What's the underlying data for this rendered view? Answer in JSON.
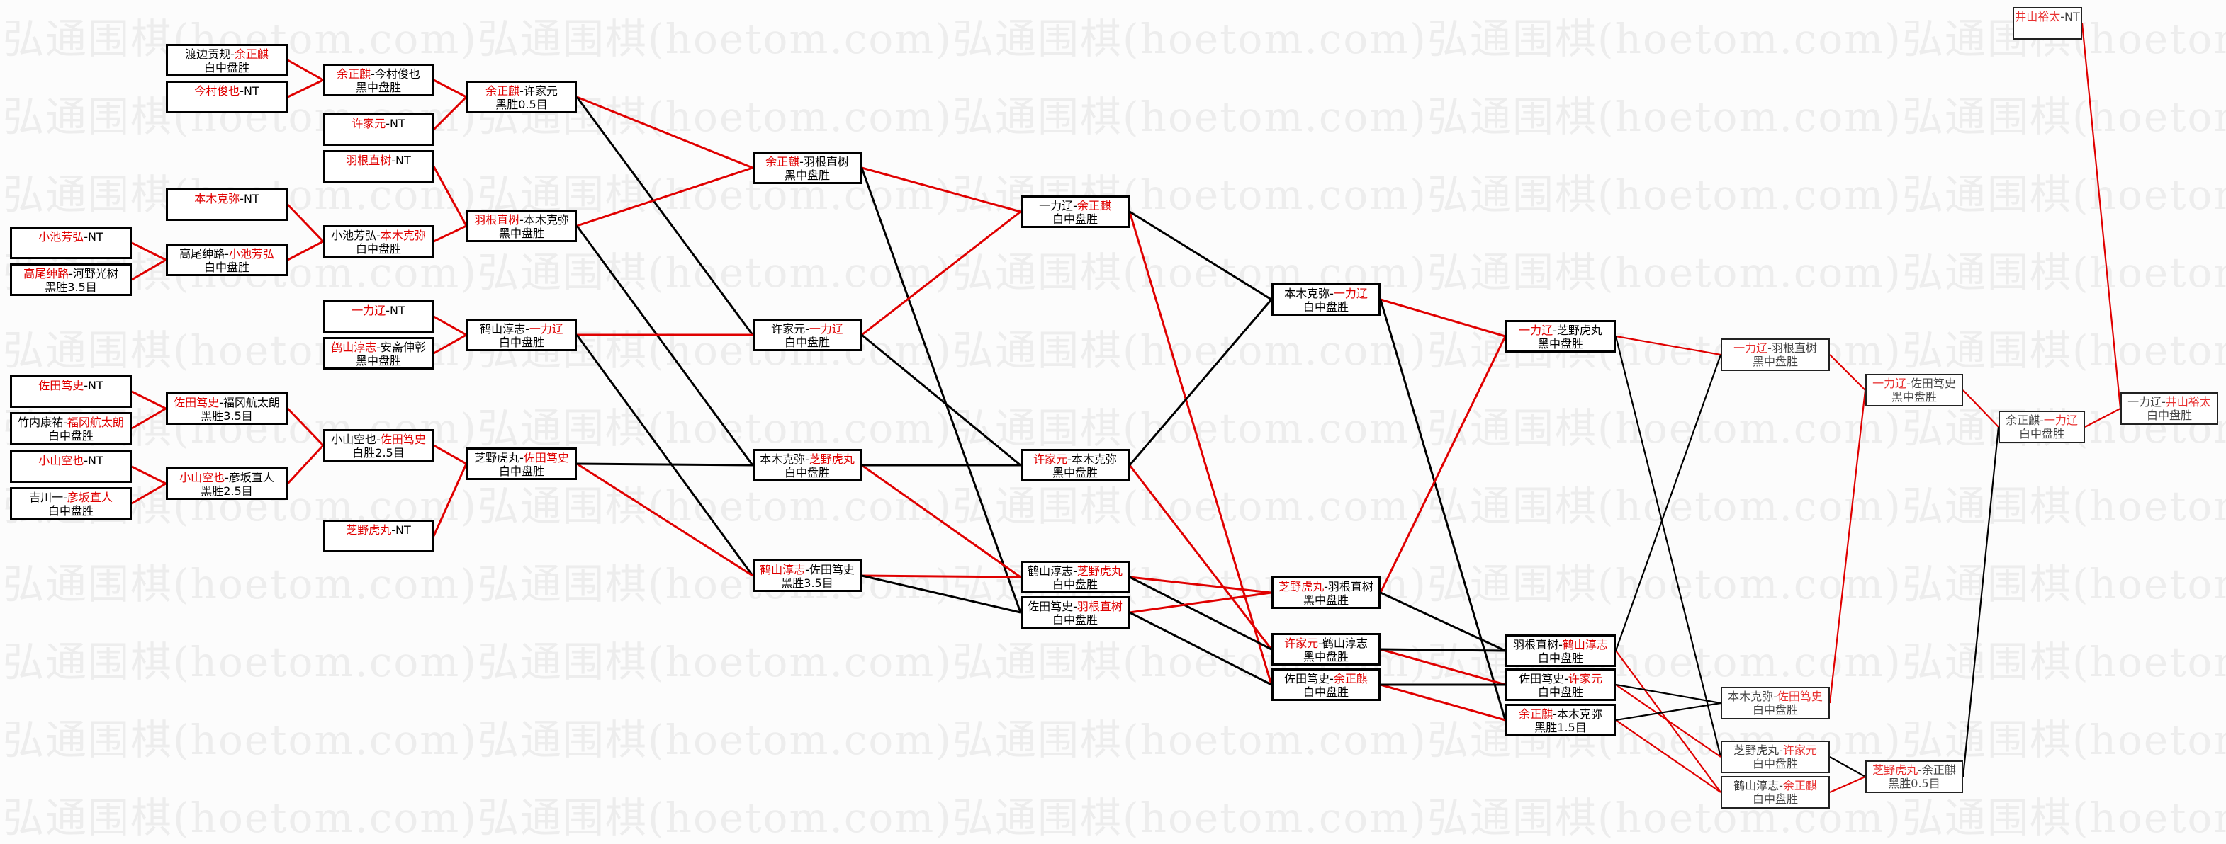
{
  "watermark": "弘通围棋(hoetom.com)",
  "colors": {
    "win_line": "#e00000",
    "lose_line": "#000000",
    "winner_name": "#e00000"
  },
  "separator": "-",
  "games": {
    "A1": {
      "a": "小池芳弘",
      "b": "NT",
      "win": "a",
      "result": ""
    },
    "A2": {
      "a": "高尾绅路",
      "b": "河野光树",
      "win": "a",
      "result": "黑胜3.5目"
    },
    "A3": {
      "a": "佐田笃史",
      "b": "NT",
      "win": "a",
      "result": ""
    },
    "A4": {
      "a": "竹内康祐",
      "b": "福冈航太朗",
      "win": "b",
      "result": "白中盘胜"
    },
    "A5": {
      "a": "小山空也",
      "b": "NT",
      "win": "a",
      "result": ""
    },
    "A6": {
      "a": "吉川一",
      "b": "彦坂直人",
      "win": "b",
      "result": "白中盘胜"
    },
    "B1": {
      "a": "渡边贡规",
      "b": "余正麒",
      "win": "b",
      "result": "白中盘胜"
    },
    "B2": {
      "a": "今村俊也",
      "b": "NT",
      "win": "a",
      "result": ""
    },
    "B3": {
      "a": "本木克弥",
      "b": "NT",
      "win": "a",
      "result": ""
    },
    "B4": {
      "a": "高尾绅路",
      "b": "小池芳弘",
      "win": "b",
      "result": "白中盘胜"
    },
    "B5": {
      "a": "佐田笃史",
      "b": "福冈航太朗",
      "win": "a",
      "result": "黑胜3.5目"
    },
    "B6": {
      "a": "小山空也",
      "b": "彦坂直人",
      "win": "a",
      "result": "黑胜2.5目"
    },
    "C1": {
      "a": "余正麒",
      "b": "今村俊也",
      "win": "a",
      "result": "黑中盘胜"
    },
    "C2": {
      "a": "许家元",
      "b": "NT",
      "win": "a",
      "result": ""
    },
    "C3": {
      "a": "羽根直树",
      "b": "NT",
      "win": "a",
      "result": ""
    },
    "C4": {
      "a": "小池芳弘",
      "b": "本木克弥",
      "win": "b",
      "result": "白中盘胜"
    },
    "C5": {
      "a": "一力辽",
      "b": "NT",
      "win": "a",
      "result": ""
    },
    "C6": {
      "a": "鹤山淳志",
      "b": "安斋伸彰",
      "win": "a",
      "result": "黑中盘胜"
    },
    "C7": {
      "a": "小山空也",
      "b": "佐田笃史",
      "win": "b",
      "result": "白胜2.5目"
    },
    "C8": {
      "a": "芝野虎丸",
      "b": "NT",
      "win": "a",
      "result": ""
    },
    "D1": {
      "a": "余正麒",
      "b": "许家元",
      "win": "a",
      "result": "黑胜0.5目"
    },
    "D2": {
      "a": "羽根直树",
      "b": "本木克弥",
      "win": "a",
      "result": "黑中盘胜"
    },
    "D3": {
      "a": "鹤山淳志",
      "b": "一力辽",
      "win": "b",
      "result": "白中盘胜"
    },
    "D4": {
      "a": "芝野虎丸",
      "b": "佐田笃史",
      "win": "b",
      "result": "白中盘胜"
    },
    "E1": {
      "a": "余正麒",
      "b": "羽根直树",
      "win": "a",
      "result": "黑中盘胜"
    },
    "E2": {
      "a": "许家元",
      "b": "一力辽",
      "win": "b",
      "result": "白中盘胜"
    },
    "E3": {
      "a": "本木克弥",
      "b": "芝野虎丸",
      "win": "b",
      "result": "白中盘胜"
    },
    "E4": {
      "a": "鹤山淳志",
      "b": "佐田笃史",
      "win": "a",
      "result": "黑胜3.5目"
    },
    "F1": {
      "a": "一力辽",
      "b": "余正麒",
      "win": "b",
      "result": "白中盘胜"
    },
    "F2": {
      "a": "许家元",
      "b": "本木克弥",
      "win": "a",
      "result": "黑中盘胜"
    },
    "F3": {
      "a": "鹤山淳志",
      "b": "芝野虎丸",
      "win": "b",
      "result": "白中盘胜"
    },
    "F4": {
      "a": "佐田笃史",
      "b": "羽根直树",
      "win": "b",
      "result": "白中盘胜"
    },
    "G1": {
      "a": "本木克弥",
      "b": "一力辽",
      "win": "b",
      "result": "白中盘胜"
    },
    "G2": {
      "a": "芝野虎丸",
      "b": "羽根直树",
      "win": "a",
      "result": "黑中盘胜"
    },
    "G3": {
      "a": "许家元",
      "b": "鹤山淳志",
      "win": "a",
      "result": "黑中盘胜"
    },
    "G4": {
      "a": "佐田笃史",
      "b": "余正麒",
      "win": "b",
      "result": "白中盘胜"
    },
    "H1": {
      "a": "一力辽",
      "b": "芝野虎丸",
      "win": "a",
      "result": "黑中盘胜"
    },
    "H2": {
      "a": "羽根直树",
      "b": "鹤山淳志",
      "win": "b",
      "result": "白中盘胜"
    },
    "H3": {
      "a": "佐田笃史",
      "b": "许家元",
      "win": "b",
      "result": "白中盘胜"
    },
    "H4": {
      "a": "余正麒",
      "b": "本木克弥",
      "win": "a",
      "result": "黑胜1.5目"
    },
    "I1": {
      "a": "一力辽",
      "b": "羽根直树",
      "win": "a",
      "result": "黑中盘胜"
    },
    "I2": {
      "a": "本木克弥",
      "b": "佐田笃史",
      "win": "b",
      "result": "白中盘胜"
    },
    "I3": {
      "a": "芝野虎丸",
      "b": "许家元",
      "win": "b",
      "result": "白中盘胜"
    },
    "I4": {
      "a": "鹤山淳志",
      "b": "余正麒",
      "win": "b",
      "result": "白中盘胜"
    },
    "J1": {
      "a": "一力辽",
      "b": "佐田笃史",
      "win": "a",
      "result": "黑中盘胜"
    },
    "J2": {
      "a": "芝野虎丸",
      "b": "余正麒",
      "win": "a",
      "result": "黑胜0.5目"
    },
    "K1": {
      "a": "余正麒",
      "b": "一力辽",
      "win": "b",
      "result": "白中盘胜"
    },
    "L0": {
      "a": "井山裕太",
      "b": "NT",
      "win": "a",
      "result": ""
    },
    "L1": {
      "a": "一力辽",
      "b": "井山裕太",
      "win": "b",
      "result": "白中盘胜"
    }
  },
  "links": [
    [
      "A1",
      "B4",
      "win"
    ],
    [
      "A2",
      "B4",
      "win"
    ],
    [
      "A3",
      "B5",
      "win"
    ],
    [
      "A4",
      "B5",
      "win"
    ],
    [
      "A5",
      "B6",
      "win"
    ],
    [
      "A6",
      "B6",
      "win"
    ],
    [
      "B1",
      "C1",
      "win"
    ],
    [
      "B2",
      "C1",
      "win"
    ],
    [
      "B3",
      "C4",
      "win"
    ],
    [
      "B4",
      "C4",
      "win"
    ],
    [
      "B5",
      "C7",
      "win"
    ],
    [
      "B6",
      "C7",
      "win"
    ],
    [
      "C1",
      "D1",
      "win"
    ],
    [
      "C2",
      "D1",
      "win"
    ],
    [
      "C3",
      "D2",
      "win"
    ],
    [
      "C4",
      "D2",
      "win"
    ],
    [
      "C5",
      "D3",
      "win"
    ],
    [
      "C6",
      "D3",
      "win"
    ],
    [
      "C7",
      "D4",
      "win"
    ],
    [
      "C8",
      "D4",
      "win"
    ],
    [
      "D1",
      "E1",
      "win"
    ],
    [
      "D1",
      "E2",
      "lose"
    ],
    [
      "D2",
      "E1",
      "win"
    ],
    [
      "D2",
      "E3",
      "lose"
    ],
    [
      "D3",
      "E2",
      "win"
    ],
    [
      "D3",
      "E4",
      "lose"
    ],
    [
      "D4",
      "E4",
      "win"
    ],
    [
      "D4",
      "E3",
      "lose"
    ],
    [
      "E1",
      "F1",
      "win"
    ],
    [
      "E1",
      "F4",
      "lose"
    ],
    [
      "E2",
      "F1",
      "win"
    ],
    [
      "E2",
      "F2",
      "lose"
    ],
    [
      "E3",
      "F3",
      "win"
    ],
    [
      "E3",
      "F2",
      "lose"
    ],
    [
      "E4",
      "F3",
      "win"
    ],
    [
      "E4",
      "F4",
      "lose"
    ],
    [
      "F1",
      "G4",
      "win"
    ],
    [
      "F1",
      "G1",
      "lose"
    ],
    [
      "F2",
      "G3",
      "win"
    ],
    [
      "F2",
      "G1",
      "lose"
    ],
    [
      "F3",
      "G2",
      "win"
    ],
    [
      "F3",
      "G3",
      "lose"
    ],
    [
      "F4",
      "G2",
      "win"
    ],
    [
      "F4",
      "G4",
      "lose"
    ],
    [
      "G1",
      "H1",
      "win"
    ],
    [
      "G1",
      "H4",
      "lose"
    ],
    [
      "G2",
      "H1",
      "win"
    ],
    [
      "G2",
      "H2",
      "lose"
    ],
    [
      "G3",
      "H3",
      "win"
    ],
    [
      "G3",
      "H2",
      "lose"
    ],
    [
      "G4",
      "H4",
      "win"
    ],
    [
      "G4",
      "H3",
      "lose"
    ],
    [
      "H1",
      "I1",
      "win"
    ],
    [
      "H1",
      "I3",
      "lose"
    ],
    [
      "H2",
      "I4",
      "win"
    ],
    [
      "H2",
      "I1",
      "lose"
    ],
    [
      "H3",
      "I3",
      "win"
    ],
    [
      "H3",
      "I2",
      "lose"
    ],
    [
      "H4",
      "I4",
      "win"
    ],
    [
      "H4",
      "I2",
      "lose"
    ],
    [
      "I1",
      "J1",
      "win"
    ],
    [
      "I2",
      "J1",
      "win"
    ],
    [
      "I3",
      "J2",
      "lose"
    ],
    [
      "I4",
      "J2",
      "win"
    ],
    [
      "J1",
      "K1",
      "win"
    ],
    [
      "J2",
      "K1",
      "lose"
    ],
    [
      "K1",
      "L1",
      "win"
    ],
    [
      "L0",
      "L1",
      "win"
    ]
  ]
}
